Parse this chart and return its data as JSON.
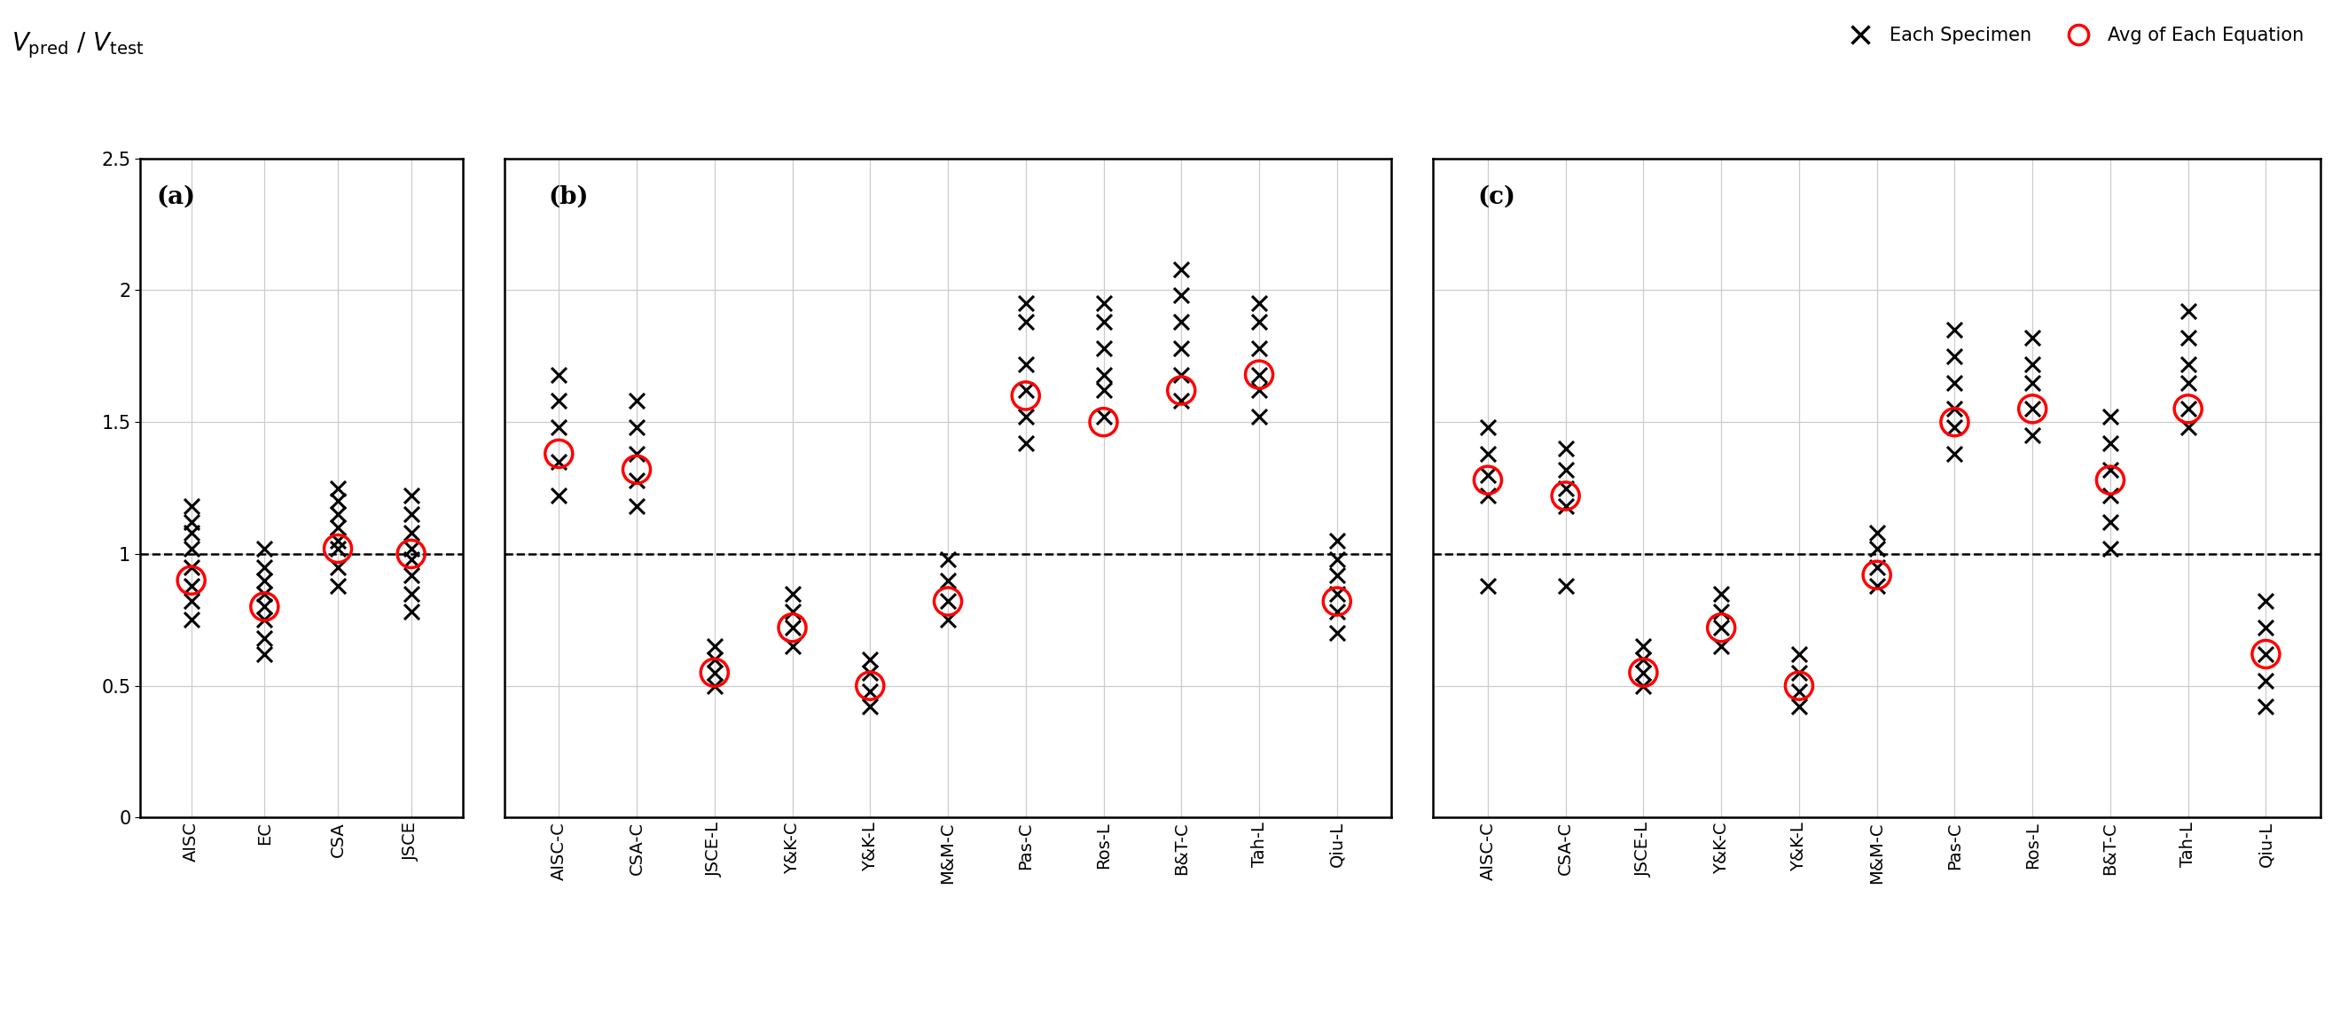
{
  "ylim": [
    0,
    2.5
  ],
  "yticks": [
    0,
    0.5,
    1.0,
    1.5,
    2.0,
    2.5
  ],
  "hline": 1.0,
  "panel_labels": [
    "(a)",
    "(b)",
    "(c)"
  ],
  "panel_a": {
    "categories": [
      "AISC",
      "EC",
      "CSA",
      "JSCE"
    ],
    "x_data": [
      [
        0.75,
        0.82,
        0.88,
        0.95,
        1.02,
        1.08,
        1.12,
        1.18
      ],
      [
        0.62,
        0.68,
        0.75,
        0.8,
        0.85,
        0.9,
        0.95,
        1.02
      ],
      [
        0.88,
        0.95,
        1.02,
        1.05,
        1.1,
        1.15,
        1.2,
        1.25
      ],
      [
        0.78,
        0.85,
        0.92,
        0.98,
        1.02,
        1.08,
        1.15,
        1.22
      ]
    ],
    "avg": [
      0.9,
      0.8,
      1.02,
      1.0
    ]
  },
  "panel_b": {
    "categories": [
      "AISC-C",
      "CSA-C",
      "JSCE-L",
      "Y&K-C",
      "Y&K-L",
      "M&M-C",
      "Pas-C",
      "Ros-L",
      "B&T-C",
      "Tah-L",
      "Qiu-L"
    ],
    "x_data": [
      [
        1.22,
        1.35,
        1.48,
        1.58,
        1.68
      ],
      [
        1.18,
        1.28,
        1.38,
        1.48,
        1.58
      ],
      [
        0.5,
        0.55,
        0.6,
        0.65
      ],
      [
        0.65,
        0.72,
        0.78,
        0.85
      ],
      [
        0.42,
        0.48,
        0.55,
        0.6
      ],
      [
        0.75,
        0.82,
        0.9,
        0.98
      ],
      [
        1.42,
        1.52,
        1.62,
        1.72,
        1.88,
        1.95
      ],
      [
        1.52,
        1.62,
        1.68,
        1.78,
        1.88,
        1.95
      ],
      [
        1.58,
        1.68,
        1.78,
        1.88,
        1.98,
        2.08
      ],
      [
        1.52,
        1.62,
        1.68,
        1.78,
        1.88,
        1.95
      ],
      [
        0.7,
        0.78,
        0.85,
        0.92,
        0.98,
        1.05
      ]
    ],
    "avg": [
      1.38,
      1.32,
      0.55,
      0.72,
      0.5,
      0.82,
      1.6,
      1.5,
      1.62,
      1.68,
      0.82
    ]
  },
  "panel_c": {
    "categories": [
      "AISC-C",
      "CSA-C",
      "JSCE-L",
      "Y&K-C",
      "Y&K-L",
      "M&M-C",
      "Pas-C",
      "Ros-L",
      "B&T-C",
      "Tah-L",
      "Qiu-L"
    ],
    "x_data": [
      [
        0.88,
        1.22,
        1.3,
        1.38,
        1.48
      ],
      [
        0.88,
        1.18,
        1.25,
        1.32,
        1.4
      ],
      [
        0.5,
        0.55,
        0.6,
        0.65
      ],
      [
        0.65,
        0.72,
        0.78,
        0.85
      ],
      [
        0.42,
        0.48,
        0.55,
        0.62
      ],
      [
        0.88,
        0.95,
        1.02,
        1.08
      ],
      [
        1.38,
        1.48,
        1.55,
        1.65,
        1.75,
        1.85
      ],
      [
        1.45,
        1.55,
        1.65,
        1.72,
        1.82
      ],
      [
        1.02,
        1.12,
        1.22,
        1.32,
        1.42,
        1.52
      ],
      [
        1.48,
        1.55,
        1.65,
        1.72,
        1.82,
        1.92
      ],
      [
        0.42,
        0.52,
        0.62,
        0.72,
        0.82
      ]
    ],
    "avg": [
      1.28,
      1.22,
      0.55,
      0.72,
      0.5,
      0.92,
      1.5,
      1.55,
      1.28,
      1.55,
      0.62
    ]
  },
  "cross_color": "#000000",
  "circle_color": "#ff0000",
  "background_color": "#ffffff",
  "grid_color": "#cccccc",
  "legend_cross_label": "Each Specimen",
  "legend_circle_label": "Avg of Each Equation"
}
